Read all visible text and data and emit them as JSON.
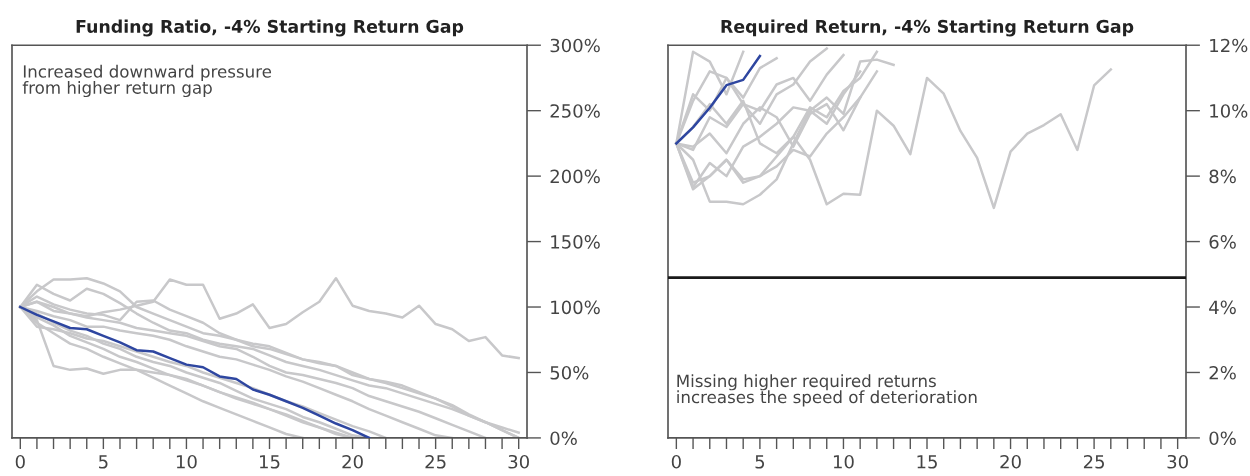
{
  "chart_data": [
    {
      "type": "line",
      "title": "Funding Ratio, -4% Starting Return Gap",
      "annotations": [
        "Increased downward pressure\nfrom higher return gap"
      ],
      "x": [
        0,
        1,
        2,
        3,
        4,
        5,
        6,
        7,
        8,
        9,
        10,
        11,
        12,
        13,
        14,
        15,
        16,
        17,
        18,
        19,
        20,
        21,
        22,
        23,
        24,
        25,
        26,
        27,
        28,
        29,
        30
      ],
      "xlim": [
        -0.5,
        30.5
      ],
      "xticks": [
        0,
        {
          "value": 1,
          "label": null
        },
        {
          "value": 2,
          "label": null
        },
        {
          "value": 3,
          "label": null
        },
        {
          "value": 4,
          "label": null
        },
        5,
        {
          "value": 6,
          "label": null
        },
        {
          "value": 7,
          "label": null
        },
        {
          "value": 8,
          "label": null
        },
        {
          "value": 9,
          "label": null
        },
        10,
        {
          "value": 11,
          "label": null
        },
        {
          "value": 12,
          "label": null
        },
        {
          "value": 13,
          "label": null
        },
        {
          "value": 14,
          "label": null
        },
        15,
        {
          "value": 16,
          "label": null
        },
        {
          "value": 17,
          "label": null
        },
        {
          "value": 18,
          "label": null
        },
        {
          "value": 19,
          "label": null
        },
        20,
        {
          "value": 21,
          "label": null
        },
        {
          "value": 22,
          "label": null
        },
        {
          "value": 23,
          "label": null
        },
        {
          "value": 24,
          "label": null
        },
        25,
        {
          "value": 26,
          "label": null
        },
        {
          "value": 27,
          "label": null
        },
        {
          "value": 28,
          "label": null
        },
        {
          "value": 29,
          "label": null
        },
        30
      ],
      "ylim": [
        0,
        300
      ],
      "yticks": [
        {
          "value": 0,
          "label": "0%"
        },
        {
          "value": 50,
          "label": "50%"
        },
        {
          "value": 100,
          "label": "100%"
        },
        {
          "value": 150,
          "label": "150%"
        },
        {
          "value": 200,
          "label": "200%"
        },
        {
          "value": 250,
          "label": "250%"
        },
        {
          "value": 300,
          "label": "300%"
        }
      ],
      "grid": false,
      "legend": false,
      "marker": "none",
      "line_style": "solid",
      "series": [
        {
          "color": "#c8c8ca",
          "values": [
            100,
            104,
            97,
            95,
            93,
            96,
            98,
            101,
            104,
            121,
            117,
            117,
            91,
            95,
            102,
            84,
            87,
            96,
            104,
            122,
            101,
            97,
            95,
            92,
            101,
            87,
            83,
            74,
            77,
            63,
            61
          ]
        },
        {
          "color": "#c8c8ca",
          "values": [
            100,
            112,
            121,
            121,
            122,
            118,
            112,
            100,
            95,
            90,
            85,
            80,
            78,
            75,
            72,
            70,
            65,
            60,
            58,
            55,
            50,
            45,
            42,
            38,
            34,
            30,
            25,
            18,
            12,
            6,
            0
          ]
        },
        {
          "color": "#c8c8ca",
          "values": [
            100,
            90,
            55,
            52,
            53,
            49,
            52,
            52,
            50,
            48,
            45,
            40,
            35,
            30,
            26,
            22,
            18,
            13,
            8,
            3,
            0,
            null,
            null,
            null,
            null,
            null,
            null,
            null,
            null,
            null,
            null
          ]
        },
        {
          "color": "#c8c8ca",
          "values": [
            100,
            117,
            110,
            105,
            114,
            110,
            103,
            95,
            88,
            82,
            80,
            75,
            72,
            70,
            68,
            63,
            58,
            55,
            52,
            48,
            44,
            40,
            38,
            34,
            30,
            26,
            22,
            17,
            12,
            8,
            4
          ]
        },
        {
          "color": "#c8c8ca",
          "values": [
            100,
            88,
            80,
            72,
            68,
            62,
            57,
            52,
            46,
            40,
            34,
            28,
            23,
            18,
            13,
            8,
            3,
            0,
            null,
            null,
            null,
            null,
            null,
            null,
            null,
            null,
            null,
            null,
            null,
            null,
            null
          ]
        },
        {
          "color": "#c8c8ca",
          "values": [
            100,
            95,
            88,
            82,
            78,
            72,
            68,
            62,
            58,
            55,
            50,
            46,
            42,
            36,
            30,
            26,
            22,
            16,
            12,
            7,
            2,
            0,
            null,
            null,
            null,
            null,
            null,
            null,
            null,
            null,
            null
          ]
        },
        {
          "color": "#c8c8ca",
          "values": [
            100,
            104,
            100,
            95,
            92,
            90,
            88,
            84,
            82,
            80,
            78,
            74,
            70,
            68,
            62,
            55,
            50,
            48,
            45,
            42,
            38,
            32,
            28,
            24,
            20,
            15,
            10,
            5,
            0,
            null,
            null
          ]
        },
        {
          "color": "#c8c8ca",
          "values": [
            100,
            97,
            93,
            90,
            85,
            85,
            82,
            80,
            78,
            75,
            70,
            66,
            62,
            60,
            56,
            52,
            47,
            43,
            38,
            33,
            28,
            22,
            17,
            12,
            7,
            2,
            0,
            null,
            null,
            null,
            null
          ]
        },
        {
          "color": "#c8c8ca",
          "values": [
            100,
            92,
            86,
            78,
            73,
            68,
            62,
            58,
            53,
            48,
            44,
            40,
            35,
            31,
            27,
            22,
            17,
            12,
            8,
            4,
            0,
            null,
            null,
            null,
            null,
            null,
            null,
            null,
            null,
            null,
            null
          ]
        },
        {
          "color": "#c8c8ca",
          "values": [
            100,
            108,
            102,
            98,
            95,
            94,
            90,
            104,
            105,
            98,
            93,
            88,
            80,
            75,
            70,
            68,
            64,
            60,
            57,
            55,
            48,
            45,
            43,
            40,
            35,
            30,
            24,
            17,
            12,
            6,
            0
          ]
        },
        {
          "color": "#c8c8ca",
          "values": [
            100,
            85,
            83,
            80,
            76,
            74,
            70,
            66,
            62,
            58,
            55,
            50,
            46,
            42,
            38,
            33,
            28,
            24,
            19,
            14,
            9,
            5,
            0,
            null,
            null,
            null,
            null,
            null,
            null,
            null,
            null
          ]
        },
        {
          "color": "#2e46a0",
          "values": [
            100,
            94,
            89,
            84,
            83,
            78,
            73,
            67,
            66,
            61,
            56,
            54,
            47,
            45,
            37,
            33,
            28,
            23,
            17,
            11,
            6,
            0,
            null,
            null,
            null,
            null,
            null,
            null,
            null,
            null,
            null
          ]
        }
      ]
    },
    {
      "type": "line",
      "title": "Required Return, -4% Starting Return Gap",
      "annotations": [
        "Missing higher required returns\nincreases the speed of deterioration"
      ],
      "x": [
        0,
        1,
        2,
        3,
        4,
        5,
        6,
        7,
        8,
        9,
        10,
        11,
        12,
        13,
        14,
        15,
        16,
        17,
        18,
        19,
        20,
        21,
        22,
        23,
        24,
        25,
        26
      ],
      "xlim": [
        -0.5,
        30.5
      ],
      "xticks": [
        0,
        {
          "value": 1,
          "label": null
        },
        {
          "value": 2,
          "label": null
        },
        {
          "value": 3,
          "label": null
        },
        {
          "value": 4,
          "label": null
        },
        5,
        {
          "value": 6,
          "label": null
        },
        {
          "value": 7,
          "label": null
        },
        {
          "value": 8,
          "label": null
        },
        {
          "value": 9,
          "label": null
        },
        10,
        {
          "value": 11,
          "label": null
        },
        {
          "value": 12,
          "label": null
        },
        {
          "value": 13,
          "label": null
        },
        {
          "value": 14,
          "label": null
        },
        15,
        {
          "value": 16,
          "label": null
        },
        {
          "value": 17,
          "label": null
        },
        {
          "value": 18,
          "label": null
        },
        {
          "value": 19,
          "label": null
        },
        20,
        {
          "value": 21,
          "label": null
        },
        {
          "value": 22,
          "label": null
        },
        {
          "value": 23,
          "label": null
        },
        {
          "value": 24,
          "label": null
        },
        25,
        {
          "value": 26,
          "label": null
        },
        {
          "value": 27,
          "label": null
        },
        {
          "value": 28,
          "label": null
        },
        {
          "value": 29,
          "label": null
        },
        30
      ],
      "ylim": [
        0,
        12
      ],
      "yticks": [
        {
          "value": 0,
          "label": "0%"
        },
        {
          "value": 2,
          "label": "2%"
        },
        {
          "value": 4,
          "label": "4%"
        },
        {
          "value": 6,
          "label": "6%"
        },
        {
          "value": 8,
          "label": "8%"
        },
        {
          "value": 10,
          "label": "10%"
        },
        {
          "value": 12,
          "label": "12%"
        }
      ],
      "grid": false,
      "legend": false,
      "marker": "none",
      "line_style": "solid",
      "ref_lines": [
        {
          "axis": "y",
          "value": 4.9,
          "color": "#1a1a1a",
          "line_style": "solid"
        }
      ],
      "series": [
        {
          "color": "#c8c8ca",
          "values": [
            9.0,
            7.6,
            8.0,
            8.5,
            7.8,
            8.0,
            8.6,
            9.2,
            8.5,
            7.14,
            7.46,
            7.43,
            10.0,
            9.54,
            8.67,
            11.0,
            10.52,
            9.38,
            8.56,
            7.03,
            8.75,
            9.3,
            9.56,
            9.89,
            8.8,
            10.77,
            11.26
          ]
        },
        {
          "color": "#c8c8ca",
          "values": [
            9.0,
            8.5,
            7.22,
            7.22,
            7.14,
            7.43,
            7.9,
            9.0,
            10.0,
            10.4,
            9.9,
            11.5,
            11.56,
            11.4,
            null,
            null,
            null,
            null,
            null,
            null,
            null,
            null,
            null,
            null,
            null,
            null,
            null
          ]
        },
        {
          "color": "#c8c8ca",
          "values": [
            9.0,
            7.8,
            8.0,
            8.5,
            7.9,
            8.0,
            8.3,
            8.8,
            8.6,
            9.3,
            9.8,
            10.4,
            null,
            null,
            null,
            null,
            null,
            null,
            null,
            null,
            null,
            null,
            null,
            null,
            null,
            null,
            null
          ]
        },
        {
          "color": "#c8c8ca",
          "values": [
            9.0,
            9.5,
            10.2,
            9.6,
            10.3,
            9.0,
            8.7,
            9.2,
            10.1,
            9.8,
            10.6,
            11.0,
            11.8,
            null,
            null,
            null,
            null,
            null,
            null,
            null,
            null,
            null,
            null,
            null,
            null,
            null,
            null
          ]
        },
        {
          "color": "#c8c8ca",
          "values": [
            9.0,
            11.8,
            11.5,
            10.5,
            11.8,
            null,
            null,
            null,
            null,
            null,
            null,
            null,
            null,
            null,
            null,
            null,
            null,
            null,
            null,
            null,
            null,
            null,
            null,
            null,
            null,
            null,
            null
          ]
        },
        {
          "color": "#c8c8ca",
          "values": [
            9.0,
            10.3,
            11.2,
            11.0,
            10.2,
            10.0,
            10.8,
            11.0,
            10.3,
            11.1,
            11.7,
            null,
            null,
            null,
            null,
            null,
            null,
            null,
            null,
            null,
            null,
            null,
            null,
            null,
            null,
            null,
            null
          ]
        },
        {
          "color": "#c8c8ca",
          "values": [
            9.0,
            8.8,
            9.8,
            9.5,
            10.2,
            9.6,
            10.5,
            10.8,
            11.5,
            11.9,
            null,
            null,
            null,
            null,
            null,
            null,
            null,
            null,
            null,
            null,
            null,
            null,
            null,
            null,
            null,
            null,
            null
          ]
        },
        {
          "color": "#c8c8ca",
          "values": [
            9.0,
            10.5,
            10.0,
            11.0,
            10.4,
            11.3,
            11.6,
            null,
            null,
            null,
            null,
            null,
            null,
            null,
            null,
            null,
            null,
            null,
            null,
            null,
            null,
            null,
            null,
            null,
            null,
            null,
            null
          ]
        },
        {
          "color": "#c8c8ca",
          "values": [
            9.0,
            8.9,
            9.3,
            8.7,
            9.6,
            10.1,
            9.8,
            8.9,
            9.9,
            10.2,
            9.4,
            10.4,
            11.2,
            null,
            null,
            null,
            null,
            null,
            null,
            null,
            null,
            null,
            null,
            null,
            null,
            null,
            null
          ]
        },
        {
          "color": "#c8c8ca",
          "values": [
            9.0,
            7.66,
            8.4,
            8.0,
            8.9,
            9.2,
            9.6,
            10.1,
            10.0,
            9.6,
            10.5,
            11.2,
            null,
            null,
            null,
            null,
            null,
            null,
            null,
            null,
            null,
            null,
            null,
            null,
            null,
            null,
            null
          ]
        },
        {
          "color": "#2e46a0",
          "values": [
            9.0,
            9.49,
            10.09,
            10.78,
            10.94,
            11.67,
            null,
            null,
            null,
            null,
            null,
            null,
            null,
            null,
            null,
            null,
            null,
            null,
            null,
            null,
            null,
            null,
            null,
            null,
            null,
            null,
            null
          ]
        }
      ]
    }
  ]
}
